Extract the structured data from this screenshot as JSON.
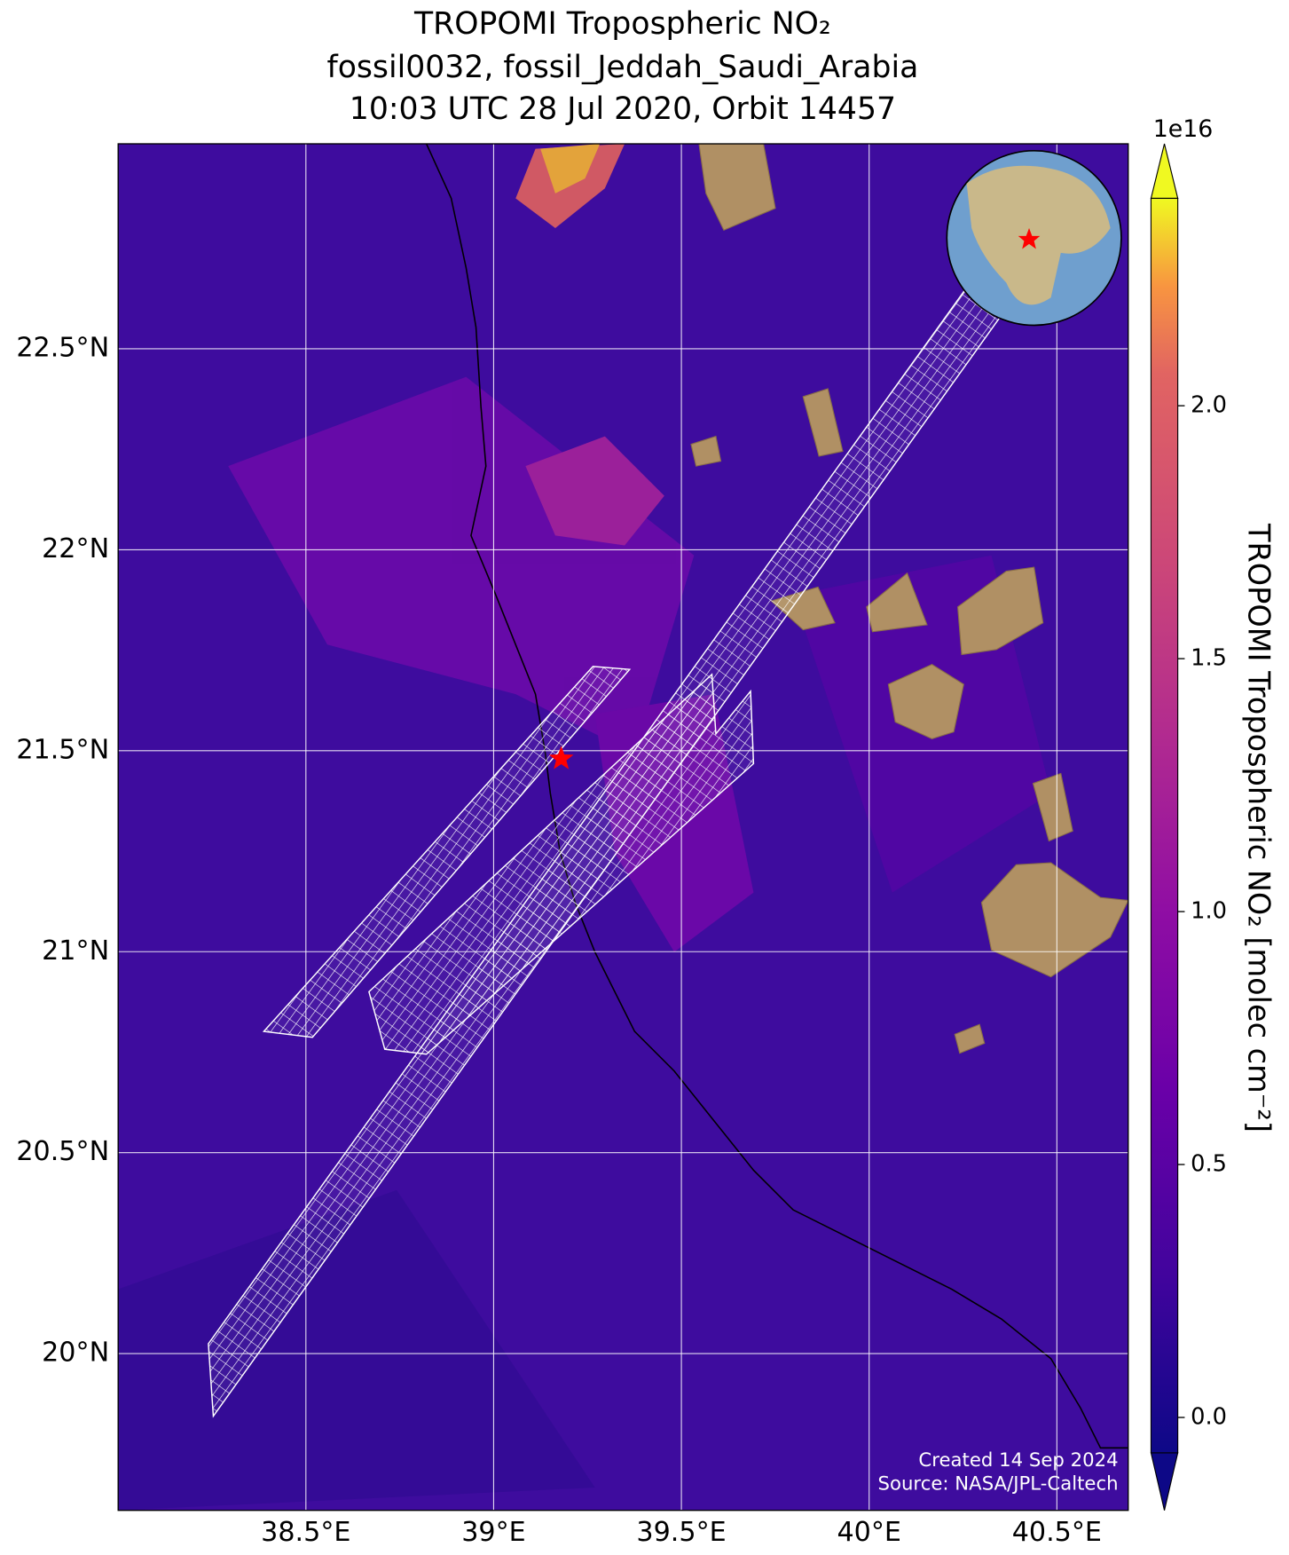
{
  "chart_data": {
    "type": "map",
    "title": [
      "TROPOMI Tropospheric NO₂",
      "fossil0032, fossil_Jeddah_Saudi_Arabia",
      "10:03 UTC 28 Jul 2020, Orbit 14457"
    ],
    "xlim": [
      38.0,
      40.69
    ],
    "ylim": [
      19.61,
      23.01
    ],
    "xticks": [
      {
        "value": 38.5,
        "label": "38.5°E"
      },
      {
        "value": 39,
        "label": "39°E"
      },
      {
        "value": 39.5,
        "label": "39.5°E"
      },
      {
        "value": 40,
        "label": "40°E"
      },
      {
        "value": 40.5,
        "label": "40.5°E"
      }
    ],
    "yticks": [
      {
        "value": 20,
        "label": "20°N"
      },
      {
        "value": 20.5,
        "label": "20.5°N"
      },
      {
        "value": 21,
        "label": "21°N"
      },
      {
        "value": 21.5,
        "label": "21.5°N"
      },
      {
        "value": 22,
        "label": "22°N"
      },
      {
        "value": 22.5,
        "label": "22.5°N"
      }
    ],
    "grid": true,
    "grid_color": "#ffffff",
    "colorbar": {
      "label": "TROPOMI Tropospheric NO₂ [molec cm⁻²]",
      "offset_label": "1e16",
      "colormap": "plasma",
      "clim": [
        -0.07,
        2.41
      ],
      "ticks": [
        {
          "value": 0,
          "label": "0.0"
        },
        0.5,
        {
          "value": 1,
          "label": "1.0"
        },
        1.5,
        {
          "value": 2,
          "label": "2.0"
        }
      ]
    },
    "target": {
      "lon": 39.18,
      "lat": 21.48,
      "color": "#ff0000"
    },
    "annotations": [
      "Created 14 Sep 2024",
      "Source: NASA/JPL-Caltech"
    ]
  }
}
